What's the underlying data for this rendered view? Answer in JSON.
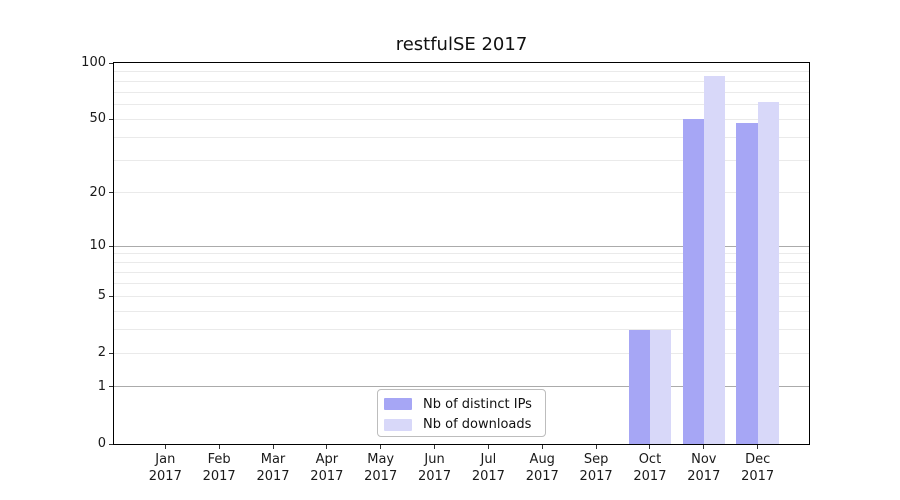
{
  "chart_data": {
    "type": "bar",
    "title": "restfulSE 2017",
    "categories": [
      "Jan",
      "Feb",
      "Mar",
      "Apr",
      "May",
      "Jun",
      "Jul",
      "Aug",
      "Sep",
      "Oct",
      "Nov",
      "Dec"
    ],
    "category_year": "2017",
    "yscale": "log1p",
    "ylim": [
      0,
      100
    ],
    "yticks": [
      0,
      1,
      2,
      5,
      10,
      20,
      50,
      100
    ],
    "grid": {
      "shown": true,
      "major_lines": [
        1,
        10
      ],
      "minor_lines": [
        2,
        3,
        4,
        5,
        6,
        7,
        8,
        9,
        20,
        30,
        40,
        50,
        60,
        70,
        80,
        90
      ]
    },
    "series": [
      {
        "name": "Nb of distinct IPs",
        "color": "#a6a6f5",
        "values": [
          0,
          0,
          0,
          0,
          0,
          0,
          0,
          0,
          0,
          3,
          50,
          48
        ]
      },
      {
        "name": "Nb of downloads",
        "color": "#d8d8f9",
        "values": [
          0,
          0,
          0,
          0,
          0,
          0,
          0,
          0,
          0,
          3,
          85,
          62
        ]
      }
    ],
    "legend": {
      "position": "bottom-center-inside"
    }
  },
  "colors": {
    "background": "#ffffff",
    "spine": "#000000",
    "grid_major": "#ababab",
    "grid_minor": "#eaeaea",
    "text": "#1a1a1a"
  }
}
